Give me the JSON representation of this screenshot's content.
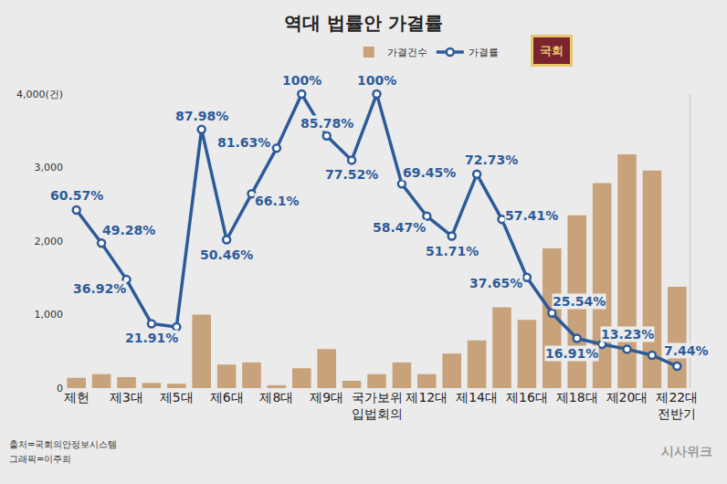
{
  "chart_data": {
    "type": "bar",
    "title": "역대 법률안 가결률",
    "categories": [
      "제헌",
      null,
      "제3대",
      null,
      "제5대",
      null,
      "제6대",
      null,
      "제8대",
      null,
      "제9대",
      null,
      "국가보위입법회의",
      null,
      "제12대",
      null,
      "제14대",
      null,
      "제16대",
      null,
      "제18대",
      null,
      "제20대",
      null,
      "제22대 전반기"
    ],
    "series": [
      {
        "name": "가결건수",
        "type": "bar",
        "color": "#c8a27a",
        "values": [
          140,
          190,
          150,
          70,
          60,
          1000,
          320,
          350,
          40,
          270,
          530,
          100,
          190,
          350,
          190,
          470,
          650,
          1100,
          930,
          1900,
          2350,
          2790,
          3180,
          2960,
          1380
        ]
      },
      {
        "name": "가결률",
        "type": "line",
        "axis": "y2",
        "color": "#2d5b9a",
        "marker": "circle",
        "data_labels": true,
        "values": [
          60.57,
          49.28,
          36.92,
          21.91,
          20.8,
          87.98,
          50.46,
          66.1,
          81.63,
          100,
          85.78,
          77.52,
          100,
          69.45,
          58.47,
          51.71,
          72.73,
          57.41,
          37.65,
          25.54,
          16.91,
          14.9,
          13.23,
          11.2,
          7.44
        ],
        "value_labels": [
          "60.57%",
          "49.28%",
          "36.92%",
          "21.91%",
          null,
          "87.98%",
          "50.46%",
          "66.1%",
          "81.63%",
          "100%",
          "85.78%",
          "77.52%",
          "100%",
          "69.45%",
          "58.47%",
          "51.71%",
          "72.73%",
          "57.41%",
          "37.65%",
          "25.54%",
          "16.91%",
          null,
          "13.23%",
          null,
          "7.44%"
        ]
      }
    ],
    "ylim": [
      0,
      4000
    ],
    "yticks": [
      0,
      {
        "value": 1000,
        "label": "1,000"
      },
      {
        "value": 2000,
        "label": "2,000"
      },
      {
        "value": 3000,
        "label": "3,000"
      },
      {
        "value": 4000,
        "label": "4,000(건)"
      }
    ],
    "y2lim": [
      0,
      100
    ],
    "y2ticks": [],
    "grid": false,
    "legend": "top",
    "annotations": [
      "출처=국회의안정보시스템",
      "그래픽=이주희",
      "시사위크",
      "국회"
    ]
  }
}
